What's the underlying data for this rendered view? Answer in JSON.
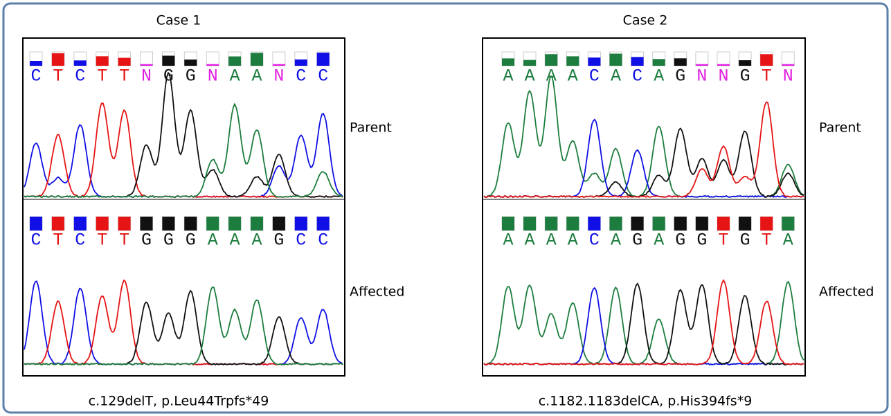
{
  "cases": [
    {
      "title": "Case 1",
      "rows": [
        {
          "label": "Parent",
          "bases": [
            "C",
            "T",
            "C",
            "T",
            "T",
            "N",
            "G",
            "G",
            "N",
            "A",
            "A",
            "N",
            "C",
            "C"
          ]
        },
        {
          "label": "Affected",
          "bases": [
            "C",
            "T",
            "C",
            "T",
            "T",
            "G",
            "G",
            "G",
            "A",
            "A",
            "A",
            "G",
            "C",
            "C"
          ]
        }
      ],
      "caption": "c.129delT, p.Leu44Trpfs*49"
    },
    {
      "title": "Case 2",
      "rows": [
        {
          "label": "Parent",
          "bases": [
            "A",
            "A",
            "A",
            "A",
            "C",
            "A",
            "C",
            "A",
            "G",
            "N",
            "N",
            "G",
            "T",
            "N"
          ]
        },
        {
          "label": "Affected",
          "bases": [
            "A",
            "A",
            "A",
            "A",
            "C",
            "A",
            "G",
            "A",
            "G",
            "G",
            "T",
            "G",
            "T",
            "A"
          ]
        }
      ],
      "caption": "c.1182.1183delCA, p.His394fs*9"
    }
  ]
}
